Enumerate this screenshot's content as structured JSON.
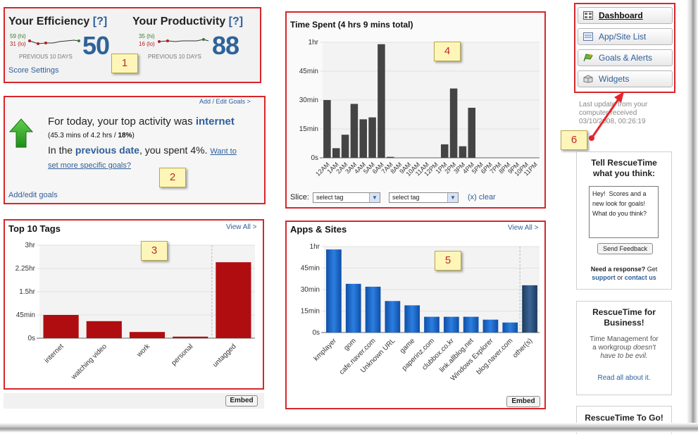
{
  "efficiency": {
    "title": "Your Efficiency",
    "help": "[?]",
    "hi": "59 (hi)",
    "lo": "31 (lo)",
    "score": "50",
    "period": "PREVIOUS 10 DAYS",
    "settings_link": "Score Settings"
  },
  "productivity": {
    "title": "Your Productivity",
    "help": "[?]",
    "hi": "35 (hi)",
    "lo": "16 (lo)",
    "score": "88",
    "period": "PREVIOUS 10 DAYS"
  },
  "goals": {
    "add_edit_top": "Add / Edit Goals >",
    "line1_prefix": "For today, your top activity was",
    "line1_activity": "internet",
    "line2_open": "(45.3 mins of 4.2 hrs / ",
    "line2_pct": "18%",
    "line2_close": ")",
    "line3_prefix": "In the",
    "line3_link": "previous date",
    "line3_suffix": ", you spent 4%.",
    "want_link": "Want to",
    "specific_link": "set more specific goals?",
    "add_edit_bottom": "Add/edit goals"
  },
  "tags": {
    "title": "Top 10 Tags",
    "view_all": "View All >",
    "embed": "Embed"
  },
  "time_spent": {
    "title": "Time Spent (4 hrs 9 mins total)",
    "slice_label": "Slice:",
    "select1": "select tag",
    "select2": "select tag",
    "clear": "(x) clear"
  },
  "apps": {
    "title": "Apps & Sites",
    "view_all": "View All >",
    "embed": "Embed"
  },
  "nav": {
    "dashboard": "Dashboard",
    "app_list": "App/Site List",
    "goals_alerts": "Goals & Alerts",
    "widgets": "Widgets"
  },
  "update_note": {
    "line1": "Last update from your",
    "line2": "computer received",
    "line3": "03/10/2008, 00:26:19"
  },
  "feedback": {
    "title_line1": "Tell RescueTime",
    "title_line2": "what you think:",
    "textarea": "Hey!  Scores and a new look for goals! What do you think?",
    "send_button": "Send Feedback",
    "need_response": "Need a response?",
    "get": " Get",
    "support": "support",
    "or": " or ",
    "contact": "contact us"
  },
  "business": {
    "title_line1": "RescueTime for",
    "title_line2": "Business!",
    "desc1": "Time Management for",
    "desc2": "a workgroup ",
    "desc2_em": "doesn't",
    "desc3_em": "have to be evil.",
    "read_link": "Read all about it."
  },
  "togo": {
    "title": "RescueTime To Go!"
  },
  "annotations": [
    "1",
    "2",
    "3",
    "4",
    "5",
    "6"
  ],
  "chart_data": [
    {
      "type": "bar",
      "title": "Top 10 Tags",
      "categories": [
        "internet",
        "watching video",
        "work",
        "personal",
        "untagged"
      ],
      "values_minutes": [
        45,
        33,
        12,
        3,
        147
      ],
      "y_ticks": [
        "0s",
        "45min",
        "1.5hr",
        "2.25hr",
        "3hr"
      ],
      "ylim_minutes": [
        0,
        180
      ],
      "colors": [
        "#b00d10",
        "#b00d10",
        "#b00d10",
        "#b00d10",
        "#b00d10"
      ]
    },
    {
      "type": "bar",
      "title": "Time Spent (4 hrs 9 mins total)",
      "categories": [
        "12AM",
        "1AM",
        "2AM",
        "3AM",
        "4AM",
        "5AM",
        "6AM",
        "7AM",
        "8AM",
        "9AM",
        "10AM",
        "11AM",
        "12PM",
        "1PM",
        "2PM",
        "3PM",
        "4PM",
        "5PM",
        "6PM",
        "7PM",
        "8PM",
        "9PM",
        "10PM",
        "11PM"
      ],
      "values_minutes": [
        30,
        5,
        12,
        28,
        20,
        21,
        59,
        0.5,
        0,
        0,
        0,
        0,
        0,
        7,
        36,
        6,
        26,
        0,
        0,
        0,
        0,
        0,
        0,
        0
      ],
      "y_ticks": [
        "0s",
        "15min",
        "30min",
        "45min",
        "1hr"
      ],
      "ylim_minutes": [
        0,
        60
      ],
      "color": "#444444"
    },
    {
      "type": "bar",
      "title": "Apps & Sites",
      "categories": [
        "kmplayer",
        "gom",
        "cafe.naver.com",
        "Unknown URL",
        "game",
        "paperinz.com",
        "clubbox.co.kr",
        "link.allblog.net",
        "Windows Explorer",
        "blog.naver.com",
        "other(s)"
      ],
      "values_minutes": [
        58,
        34,
        32,
        22,
        19,
        11,
        11,
        11,
        9,
        7,
        33
      ],
      "y_ticks": [
        "0s",
        "15min",
        "30min",
        "45min",
        "1hr"
      ],
      "ylim_minutes": [
        0,
        60
      ],
      "color": "#1460c4",
      "other_color": "#274a73"
    }
  ]
}
